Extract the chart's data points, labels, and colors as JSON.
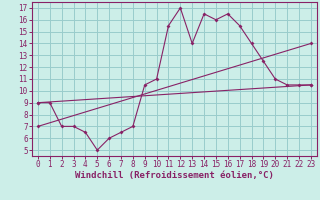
{
  "xlabel": "Windchill (Refroidissement éolien,°C)",
  "background_color": "#cceee8",
  "grid_color": "#99cccc",
  "line_color": "#882266",
  "xlim": [
    -0.5,
    23.5
  ],
  "ylim": [
    4.5,
    17.5
  ],
  "xticks": [
    0,
    1,
    2,
    3,
    4,
    5,
    6,
    7,
    8,
    9,
    10,
    11,
    12,
    13,
    14,
    15,
    16,
    17,
    18,
    19,
    20,
    21,
    22,
    23
  ],
  "yticks": [
    5,
    6,
    7,
    8,
    9,
    10,
    11,
    12,
    13,
    14,
    15,
    16,
    17
  ],
  "curve1_x": [
    0,
    1,
    2,
    3,
    4,
    5,
    6,
    7,
    8,
    9,
    10,
    11,
    12,
    13,
    14,
    15,
    16,
    17,
    18,
    19,
    20,
    21,
    22,
    23
  ],
  "curve1_y": [
    9,
    9,
    7,
    7,
    6.5,
    5,
    6,
    6.5,
    7,
    10.5,
    11,
    15.5,
    17,
    14,
    16.5,
    16,
    16.5,
    15.5,
    14,
    12.5,
    11,
    10.5,
    10.5,
    10.5
  ],
  "curve2_x": [
    0,
    23
  ],
  "curve2_y": [
    9,
    10.5
  ],
  "curve3_x": [
    0,
    23
  ],
  "curve3_y": [
    7,
    14
  ],
  "tick_fontsize": 5.5,
  "label_fontsize": 6.5
}
